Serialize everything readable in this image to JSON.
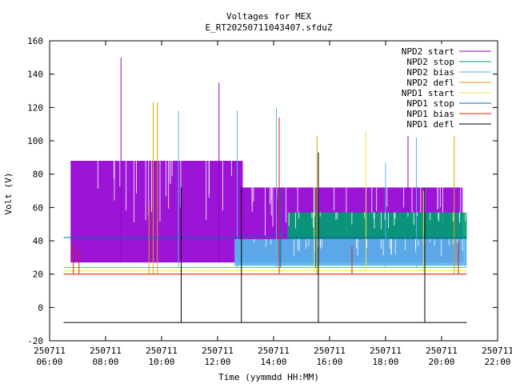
{
  "chart_data": {
    "type": "line",
    "title": "Voltages for MEX",
    "subtitle": "E_RT20250711043407.sfduZ",
    "xlabel": "Time (yymmdd HH:MM)",
    "ylabel": "Volt (V)",
    "xlim": [
      "2025-07-11 06:00",
      "2025-07-11 22:00"
    ],
    "ylim": [
      -20,
      160
    ],
    "x_ticks": [
      {
        "date": "250711",
        "time": "06:00",
        "hour": 6
      },
      {
        "date": "250711",
        "time": "08:00",
        "hour": 8
      },
      {
        "date": "250711",
        "time": "10:00",
        "hour": 10
      },
      {
        "date": "250711",
        "time": "12:00",
        "hour": 12
      },
      {
        "date": "250711",
        "time": "14:00",
        "hour": 14
      },
      {
        "date": "250711",
        "time": "16:00",
        "hour": 16
      },
      {
        "date": "250711",
        "time": "18:00",
        "hour": 18
      },
      {
        "date": "250711",
        "time": "20:00",
        "hour": 20
      },
      {
        "date": "250711",
        "time": "22:00",
        "hour": 22
      }
    ],
    "y_ticks": [
      -20,
      0,
      20,
      40,
      60,
      80,
      100,
      120,
      140,
      160
    ],
    "grid": false,
    "legend_position": "top-right",
    "series": [
      {
        "name": "NPD2 start",
        "color": "#9400d3",
        "band": [
          {
            "x0": 6.75,
            "x1": 12.9,
            "low": 27,
            "high": 88
          },
          {
            "x0": 12.9,
            "x1": 20.75,
            "low": 27,
            "high": 72
          }
        ],
        "spikes": [
          {
            "x": 8.55,
            "low": 27,
            "high": 150
          },
          {
            "x": 12.05,
            "low": 27,
            "high": 135
          },
          {
            "x": 18.8,
            "low": 27,
            "high": 103
          }
        ]
      },
      {
        "name": "NPD2 stop",
        "color": "#009e73",
        "band": [
          {
            "x0": 14.5,
            "x1": 20.9,
            "low": 41,
            "high": 57
          }
        ],
        "spikes": []
      },
      {
        "name": "NPD2 bias",
        "color": "#56b4e9",
        "band": [
          {
            "x0": 12.6,
            "x1": 20.9,
            "low": 25,
            "high": 41
          }
        ],
        "baseline": 24,
        "spikes": [
          {
            "x": 10.6,
            "low": 24,
            "high": 118
          },
          {
            "x": 12.7,
            "low": 24,
            "high": 118
          },
          {
            "x": 14.1,
            "low": 24,
            "high": 120
          },
          {
            "x": 18.0,
            "low": 24,
            "high": 87
          },
          {
            "x": 19.1,
            "low": 24,
            "high": 102
          }
        ]
      },
      {
        "name": "NPD2 defl",
        "color": "#e69f00",
        "baseline": 20,
        "spikes": [
          {
            "x": 9.7,
            "low": 20,
            "high": 123
          },
          {
            "x": 9.85,
            "low": 20,
            "high": 123
          },
          {
            "x": 9.55,
            "low": 20,
            "high": 62
          },
          {
            "x": 15.55,
            "low": 20,
            "high": 103
          },
          {
            "x": 20.45,
            "low": 20,
            "high": 103
          }
        ]
      },
      {
        "name": "NPD1 start",
        "color": "#f0e442",
        "baseline": 22,
        "spikes": [
          {
            "x": 17.3,
            "low": 22,
            "high": 106
          },
          {
            "x": 15.45,
            "low": 22,
            "high": 72
          },
          {
            "x": 19.35,
            "low": 22,
            "high": 70
          }
        ]
      },
      {
        "name": "NPD1 stop",
        "color": "#0072b2",
        "baseline": 42,
        "spikes": [
          {
            "x": 15.5,
            "low": 24,
            "high": 72
          },
          {
            "x": 14.25,
            "low": 24,
            "high": 72
          }
        ]
      },
      {
        "name": "NPD1 bias",
        "color": "#e51e10",
        "baseline": 20,
        "spikes": [
          {
            "x": 6.85,
            "low": 20,
            "high": 38
          },
          {
            "x": 7.05,
            "low": 20,
            "high": 35
          },
          {
            "x": 14.2,
            "low": 20,
            "high": 114
          },
          {
            "x": 16.8,
            "low": 20,
            "high": 37
          },
          {
            "x": 20.6,
            "low": 20,
            "high": 40
          }
        ]
      },
      {
        "name": "NPD1 defl",
        "color": "#000000",
        "baseline": -9,
        "x_range": [
          6.5,
          20.9
        ],
        "spikes": [
          {
            "x": 10.7,
            "low": -9,
            "high": 72
          },
          {
            "x": 12.85,
            "low": -9,
            "high": 72
          },
          {
            "x": 15.6,
            "low": -9,
            "high": 93
          },
          {
            "x": 19.4,
            "low": -9,
            "high": 72
          }
        ]
      }
    ]
  }
}
